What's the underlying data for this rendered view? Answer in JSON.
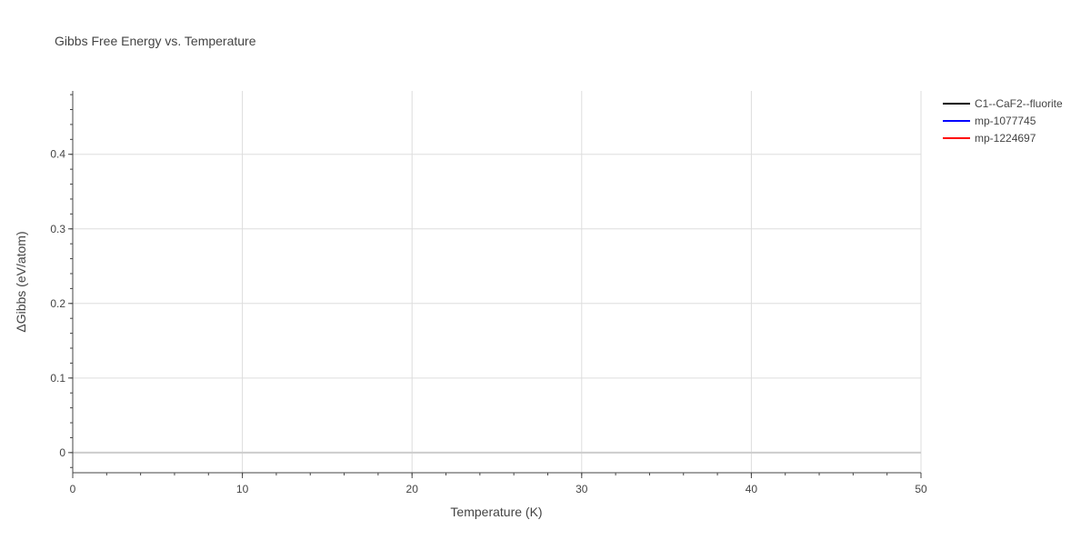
{
  "chart_data": {
    "type": "line",
    "title": "Gibbs Free Energy vs. Temperature",
    "xlabel": "Temperature (K)",
    "ylabel": "ΔGibbs (eV/atom)",
    "xlim": [
      0,
      50
    ],
    "ylim": [
      -0.027,
      0.485
    ],
    "xticks": [
      0,
      10,
      20,
      30,
      40,
      50
    ],
    "yticks": [
      0,
      0.1,
      0.2,
      0.3,
      0.4
    ],
    "ytick_labels": [
      "0",
      "0.1",
      "0.2",
      "0.3",
      "0.4"
    ],
    "grid": true,
    "legend_placement": "top-right",
    "series": [
      {
        "name": "C1--CaF2--fluorite",
        "color": "#000000",
        "x": [],
        "y": []
      },
      {
        "name": "mp-1077745",
        "color": "#0000ff",
        "x": [],
        "y": []
      },
      {
        "name": "mp-1224697",
        "color": "#ff0000",
        "x": [],
        "y": []
      }
    ]
  }
}
